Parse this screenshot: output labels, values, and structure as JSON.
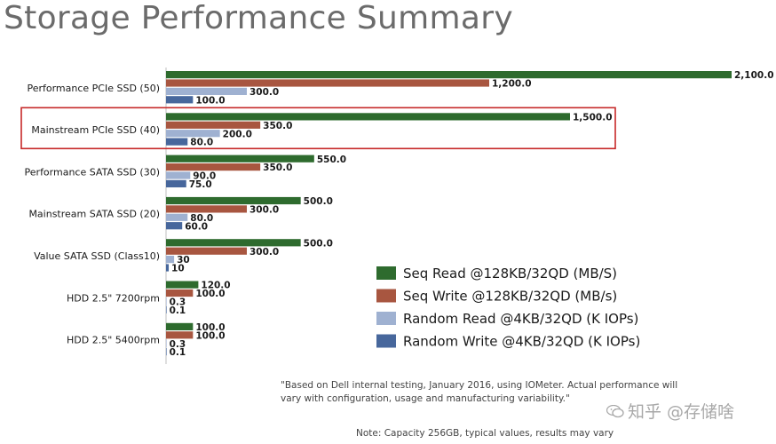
{
  "title": "Storage Performance Summary",
  "footnote": "\"Based on Dell internal testing, January 2016, using IOMeter.  Actual performance will vary with configuration, usage and manufacturing variability.\"",
  "note": "Note: Capacity 256GB, typical values, results may vary",
  "watermark": "知乎 @存储啥",
  "highlight_category": "Mainstream PCIe SSD (40)",
  "chart_data": {
    "type": "bar",
    "orientation": "horizontal",
    "title": "Storage Performance Summary",
    "categories": [
      "Performance PCIe SSD (50)",
      "Mainstream PCIe SSD (40)",
      "Performance SATA SSD (30)",
      "Mainstream SATA SSD (20)",
      "Value SATA SSD (Class10)",
      "HDD 2.5\" 7200rpm",
      "HDD 2.5\" 5400rpm"
    ],
    "series": [
      {
        "name": "Seq Read @128KB/32QD (MB/S)",
        "color": "#2e6b2e",
        "values": [
          2100,
          1500,
          550,
          500,
          500,
          120,
          100
        ],
        "labels": [
          "2,100.0",
          "1,500.0",
          "550.0",
          "500.0",
          "500.0",
          "120.0",
          "100.0"
        ]
      },
      {
        "name": "Seq Write @128KB/32QD (MB/s)",
        "color": "#a85640",
        "values": [
          1200,
          350,
          350,
          300,
          300,
          100,
          100
        ],
        "labels": [
          "1,200.0",
          "350.0",
          "350.0",
          "300.0",
          "300.0",
          "100.0",
          "100.0"
        ]
      },
      {
        "name": "Random Read @4KB/32QD (K IOPs)",
        "color": "#9fb1d1",
        "values": [
          300,
          200,
          90,
          80,
          30,
          0.3,
          0.3
        ],
        "labels": [
          "300.0",
          "200.0",
          "90.0",
          "80.0",
          "30",
          "0.3",
          "0.3"
        ]
      },
      {
        "name": "Random Write @4KB/32QD (K IOPs)",
        "color": "#47679c",
        "values": [
          100,
          80,
          75,
          60,
          10,
          0.1,
          0.1
        ],
        "labels": [
          "100.0",
          "80.0",
          "75.0",
          "60.0",
          "10",
          "0.1",
          "0.1"
        ]
      }
    ],
    "xlim": [
      0,
      2100
    ],
    "grid": false,
    "legend_position": "bottom-right"
  }
}
